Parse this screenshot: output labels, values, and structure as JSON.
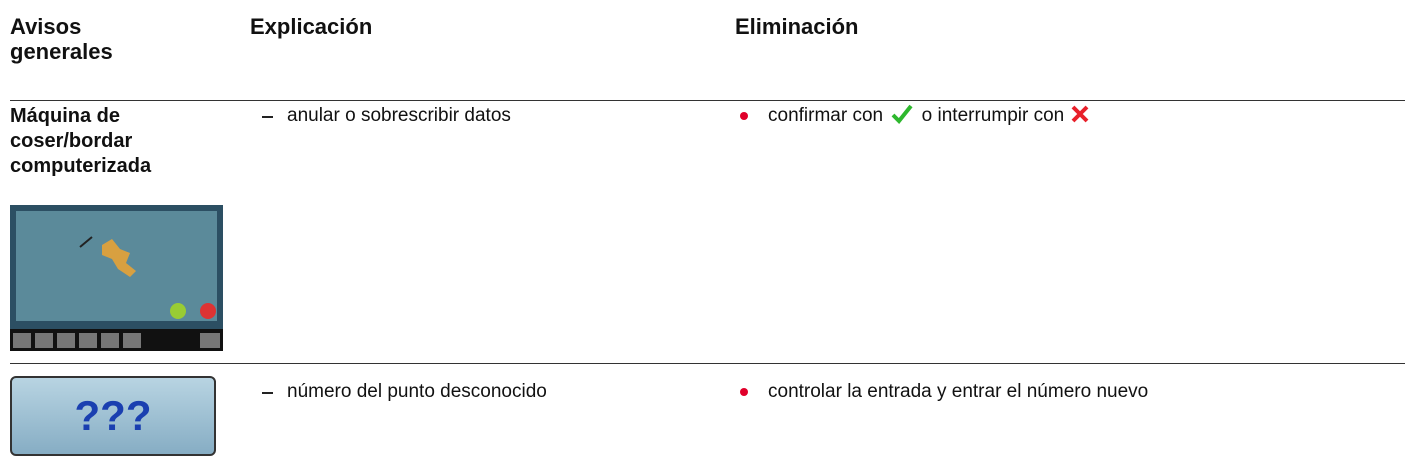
{
  "header": {
    "col1": "Avisos generales",
    "col2": "Explicación",
    "col3": "Eliminación"
  },
  "rows": [
    {
      "label": "Máquina de coser/bordar computerizada",
      "explanation": "anular o sobrescribir datos",
      "remedy": {
        "before": "confirmar con",
        "middle": "o interrumpir con"
      }
    },
    {
      "button": "???",
      "explanation": "número del punto desconocido",
      "remedy": "controlar la entrada y entrar el número nuevo"
    }
  ]
}
